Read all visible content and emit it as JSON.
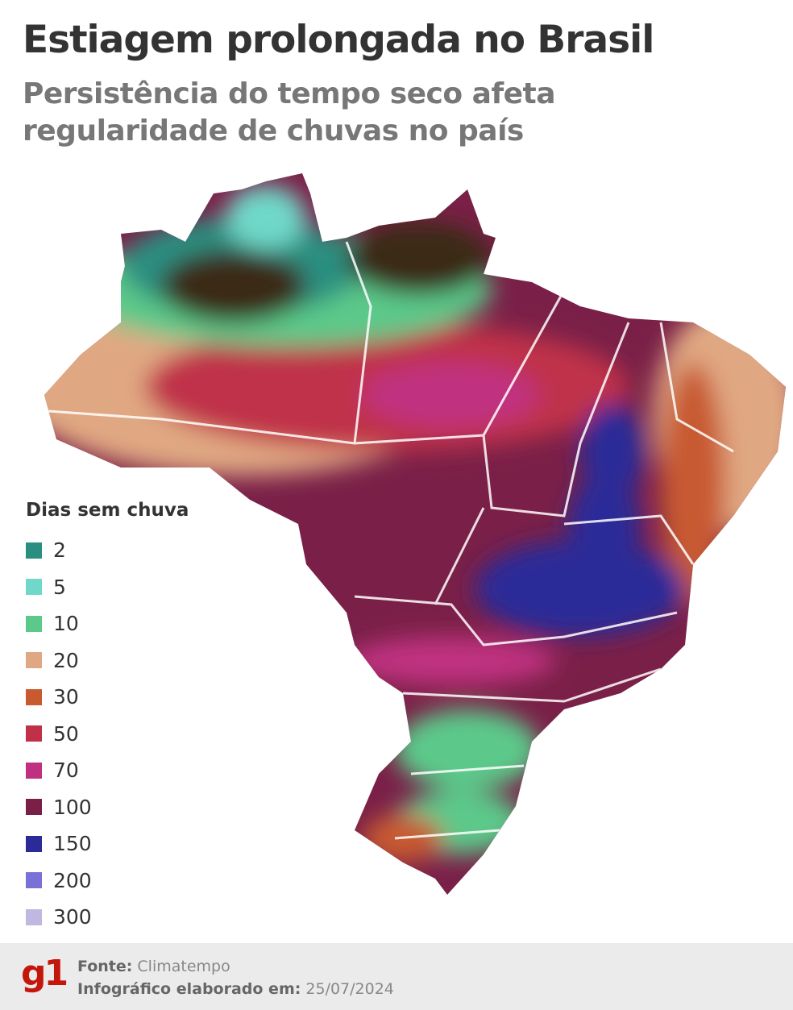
{
  "header": {
    "title": "Estiagem prolongada no Brasil",
    "subtitle_lines": [
      "Persistência do tempo seco afeta",
      "regularidade de chuvas no país"
    ]
  },
  "legend": {
    "title": "Dias sem chuva",
    "items": [
      {
        "label": "2",
        "color": "#2a8f80"
      },
      {
        "label": "5",
        "color": "#6fd8c8"
      },
      {
        "label": "10",
        "color": "#5cc98a"
      },
      {
        "label": "20",
        "color": "#e0a882"
      },
      {
        "label": "30",
        "color": "#c85a30"
      },
      {
        "label": "50",
        "color": "#c03048"
      },
      {
        "label": "70",
        "color": "#c03080"
      },
      {
        "label": "100",
        "color": "#7a2048"
      },
      {
        "label": "150",
        "color": "#2a2a98"
      },
      {
        "label": "200",
        "color": "#7a70d8"
      },
      {
        "label": "300",
        "color": "#c0b8e0"
      }
    ]
  },
  "footer": {
    "logo": "g1",
    "source_label": "Fonte:",
    "source": "Climatempo",
    "date_label": "Infográfico elaborado em:",
    "date": "25/07/2024"
  }
}
